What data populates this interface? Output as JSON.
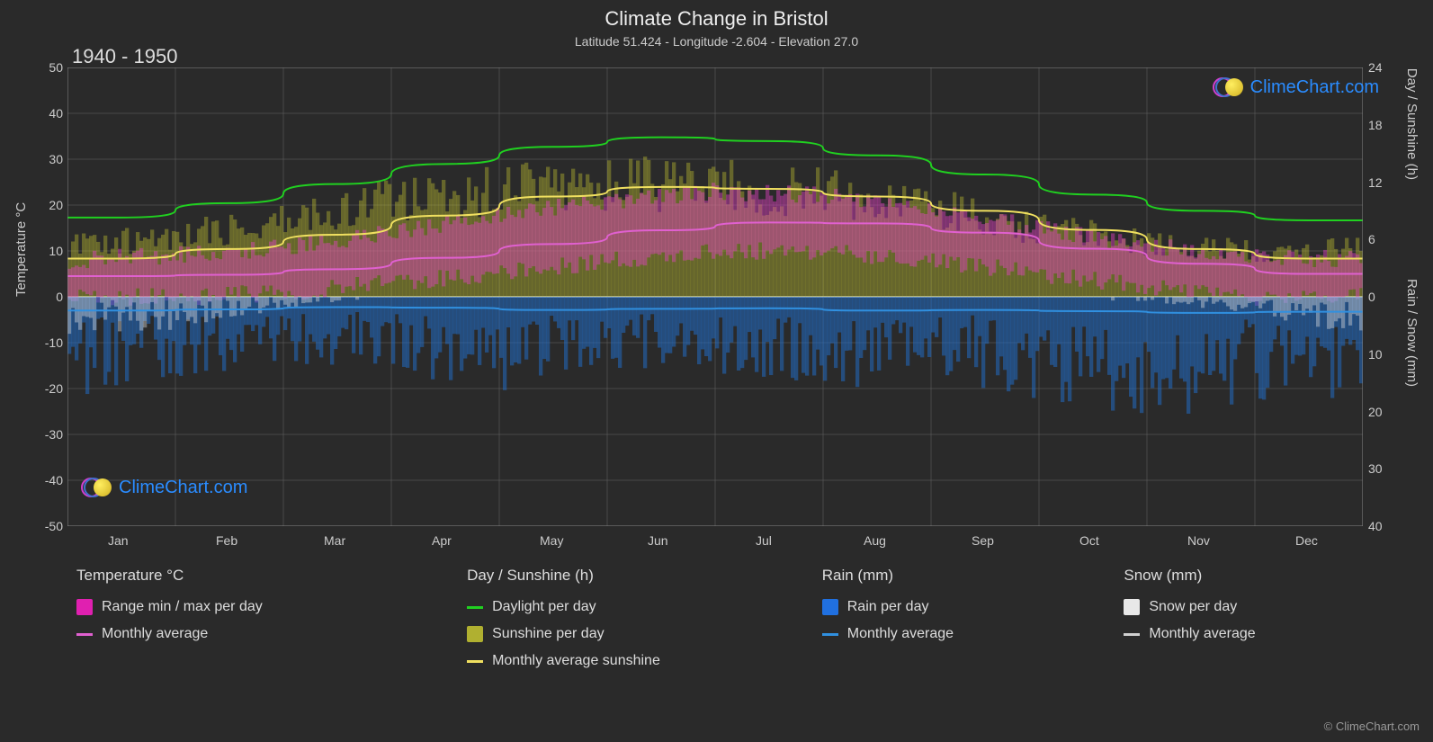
{
  "title": "Climate Change in Bristol",
  "subtitle": "Latitude 51.424 - Longitude -2.604 - Elevation 27.0",
  "year_range": "1940 - 1950",
  "watermark_text": "ClimeChart.com",
  "copyright": "© ClimeChart.com",
  "chart": {
    "type": "multi-axis-climate",
    "background_color": "#2a2a2a",
    "plot_bg": "#2a2a2a",
    "grid_color": "#666666",
    "grid_width": 0.5,
    "text_color": "#cccccc",
    "months": [
      "Jan",
      "Feb",
      "Mar",
      "Apr",
      "May",
      "Jun",
      "Jul",
      "Aug",
      "Sep",
      "Oct",
      "Nov",
      "Dec"
    ],
    "left_axis": {
      "label": "Temperature °C",
      "min": -50,
      "max": 50,
      "step": 10,
      "ticks": [
        50,
        40,
        30,
        20,
        10,
        0,
        -10,
        -20,
        -30,
        -40,
        -50
      ]
    },
    "right_axis_top": {
      "label": "Day / Sunshine (h)",
      "min": 0,
      "max": 24,
      "step": 6,
      "ticks": [
        24,
        18,
        12,
        6,
        0
      ]
    },
    "right_axis_bottom": {
      "label": "Rain / Snow (mm)",
      "min": 0,
      "max": 40,
      "step": 10,
      "ticks": [
        10,
        20,
        30,
        40
      ]
    },
    "series": {
      "daylight": {
        "color": "#20d020",
        "width": 2,
        "values_h": [
          8.3,
          9.8,
          11.8,
          13.9,
          15.7,
          16.7,
          16.3,
          14.8,
          12.8,
          10.7,
          9.0,
          8.0
        ]
      },
      "avg_sunshine": {
        "color": "#f0e060",
        "width": 2,
        "values_h": [
          4.0,
          5.0,
          6.5,
          8.5,
          10.5,
          11.5,
          11.3,
          10.5,
          9.0,
          7.0,
          5.0,
          4.0
        ]
      },
      "temp_avg": {
        "color": "#e060d0",
        "width": 2,
        "values_c": [
          4.5,
          4.8,
          6.0,
          8.5,
          11.5,
          14.5,
          16.2,
          16.0,
          14.0,
          10.5,
          7.2,
          5.0
        ]
      },
      "rain_avg": {
        "color": "#3090e0",
        "width": 2,
        "values_mm": [
          2.4,
          2.2,
          1.8,
          1.9,
          2.3,
          2.1,
          2.0,
          2.4,
          2.3,
          2.5,
          2.8,
          2.6
        ]
      },
      "temp_range_bars": {
        "color": "#e040c0",
        "opacity": 0.45,
        "min_c": [
          0,
          0,
          1,
          3,
          5,
          8,
          10,
          10,
          8,
          5,
          2,
          0
        ],
        "max_c": [
          8,
          9,
          11,
          14,
          18,
          21,
          23,
          22,
          19,
          15,
          11,
          9
        ]
      },
      "sunshine_bars": {
        "color": "#c0c030",
        "opacity": 0.4,
        "max_h": [
          6.5,
          8,
          10,
          12.5,
          14,
          15,
          14.5,
          13.5,
          11.5,
          9,
          7,
          6
        ]
      },
      "rain_bars": {
        "color": "#2070d0",
        "opacity": 0.5,
        "max_mm": [
          12,
          10,
          8,
          9,
          11,
          10,
          9,
          11,
          10,
          12,
          14,
          13
        ]
      },
      "snow_bars": {
        "color": "#e0e0e0",
        "opacity": 0.4,
        "max_mm": [
          8,
          6,
          2,
          0,
          0,
          0,
          0,
          0,
          0,
          0,
          1,
          3
        ]
      }
    }
  },
  "legend": {
    "col1": {
      "header": "Temperature °C",
      "items": [
        {
          "swatch": "#e020b0",
          "type": "box",
          "label": "Range min / max per day"
        },
        {
          "swatch": "#e060d0",
          "type": "line",
          "label": "Monthly average"
        }
      ]
    },
    "col2": {
      "header": "Day / Sunshine (h)",
      "items": [
        {
          "swatch": "#20d020",
          "type": "line",
          "label": "Daylight per day"
        },
        {
          "swatch": "#b0b030",
          "type": "box",
          "label": "Sunshine per day"
        },
        {
          "swatch": "#f0e060",
          "type": "line",
          "label": "Monthly average sunshine"
        }
      ]
    },
    "col3": {
      "header": "Rain (mm)",
      "items": [
        {
          "swatch": "#2070e0",
          "type": "box",
          "label": "Rain per day"
        },
        {
          "swatch": "#3090e0",
          "type": "line",
          "label": "Monthly average"
        }
      ]
    },
    "col4": {
      "header": "Snow (mm)",
      "items": [
        {
          "swatch": "#e8e8e8",
          "type": "box",
          "label": "Snow per day"
        },
        {
          "swatch": "#d0d0d0",
          "type": "line",
          "label": "Monthly average"
        }
      ]
    }
  }
}
